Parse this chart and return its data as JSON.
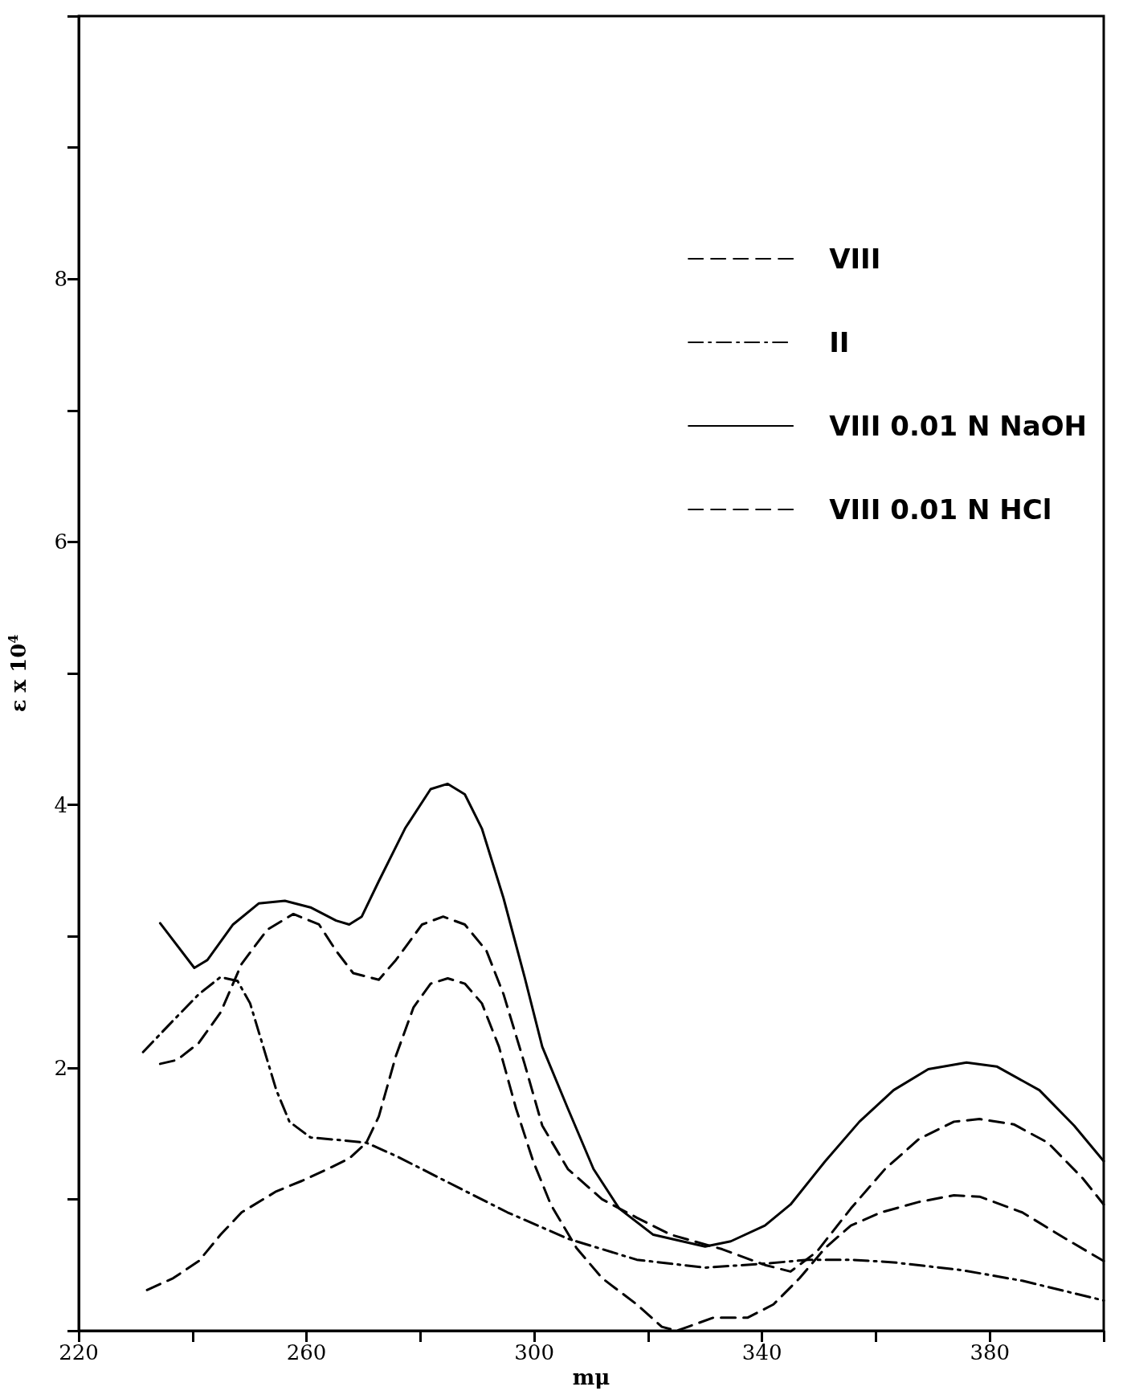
{
  "chart_data": {
    "type": "line",
    "xlabel": "mμ",
    "ylabel": "ε x 10$^{4}$",
    "xlim": [
      220,
      400
    ],
    "ylim": [
      0,
      10
    ],
    "xticks": [
      220,
      {
        "value": 240,
        "label": null
      },
      260,
      {
        "value": 280,
        "label": null
      },
      300,
      {
        "value": 320,
        "label": null
      },
      340,
      {
        "value": 360,
        "label": null
      },
      380,
      {
        "value": 400,
        "label": null
      }
    ],
    "yticks": [
      {
        "value": 0,
        "label": null
      },
      {
        "value": 1,
        "label": null
      },
      2,
      {
        "value": 3,
        "label": null
      },
      4,
      {
        "value": 5,
        "label": null
      },
      6,
      {
        "value": 7,
        "label": null
      },
      8,
      {
        "value": 9,
        "label": null
      },
      {
        "value": 10,
        "label": null
      }
    ],
    "grid": false,
    "legend": "top right",
    "marker": "none",
    "series": [
      {
        "name": "VIII",
        "color": "#000000",
        "line_style": "dashed",
        "x": [
          234.3,
          237.3,
          241.1,
          244.9,
          248.6,
          253.1,
          257.7,
          262.2,
          265.2,
          268.2,
          272.7,
          275.7,
          280.3,
          284,
          287.8,
          291.6,
          294.6,
          298.3,
          301.4,
          305.9,
          311.9,
          318,
          324,
          333,
          340.5,
          345,
          349.6,
          355.6,
          361.6,
          367.6,
          373.7,
          378.2,
          384.2,
          390.2,
          396.3,
          400
        ],
        "values": [
          2.03,
          2.06,
          2.19,
          2.42,
          2.79,
          3.05,
          3.17,
          3.09,
          2.89,
          2.72,
          2.67,
          2.82,
          3.09,
          3.15,
          3.09,
          2.89,
          2.56,
          2.03,
          1.56,
          1.23,
          1.0,
          0.86,
          0.73,
          0.62,
          0.5,
          0.45,
          0.6,
          0.93,
          1.23,
          1.46,
          1.59,
          1.61,
          1.57,
          1.43,
          1.16,
          0.96
        ]
      },
      {
        "name": "II",
        "color": "#000000",
        "line_style": "dashdot",
        "x": [
          231.3,
          236.6,
          241.1,
          244.9,
          247.9,
          250.1,
          252.4,
          254.7,
          257,
          260.7,
          265.9,
          270.5,
          275.7,
          284.8,
          295.3,
          305.9,
          318,
          330,
          340.5,
          348.1,
          355.6,
          363.1,
          375.2,
          385.7,
          400
        ],
        "values": [
          2.12,
          2.36,
          2.56,
          2.69,
          2.66,
          2.49,
          2.16,
          1.83,
          1.59,
          1.47,
          1.45,
          1.43,
          1.33,
          1.13,
          0.9,
          0.7,
          0.54,
          0.48,
          0.51,
          0.54,
          0.54,
          0.52,
          0.46,
          0.38,
          0.23
        ]
      },
      {
        "name": "VIII 0.01 N NaOH",
        "color": "#000000",
        "line_style": "solid",
        "x": [
          234.3,
          240.3,
          242.6,
          247.1,
          251.6,
          256.2,
          260.7,
          265.2,
          267.5,
          269.7,
          272.7,
          277.3,
          281.8,
          284.8,
          287.8,
          290.8,
          294.6,
          298.3,
          301.4,
          305.9,
          310.4,
          314.9,
          320.9,
          330,
          334.5,
          340.5,
          345,
          351.1,
          357.1,
          363.1,
          369.2,
          375.9,
          381.2,
          388.7,
          394.8,
          400
        ],
        "values": [
          3.1,
          2.76,
          2.82,
          3.09,
          3.25,
          3.27,
          3.22,
          3.12,
          3.09,
          3.15,
          3.42,
          3.82,
          4.12,
          4.16,
          4.08,
          3.82,
          3.29,
          2.69,
          2.16,
          1.69,
          1.23,
          0.93,
          0.73,
          0.64,
          0.68,
          0.8,
          0.96,
          1.29,
          1.59,
          1.83,
          1.99,
          2.04,
          2.01,
          1.83,
          1.56,
          1.29
        ]
      },
      {
        "name": "VIII 0.01 N HCl",
        "color": "#000000",
        "line_style": "dashed",
        "x": [
          232,
          236.6,
          241.1,
          244.9,
          248.6,
          254.7,
          259.2,
          263.7,
          267.5,
          270.5,
          272.7,
          275.7,
          278.8,
          281.8,
          284.8,
          287.8,
          290.8,
          293.8,
          296.8,
          299.8,
          302.9,
          307.4,
          311.9,
          318,
          322.4,
          325,
          327,
          331.5,
          337.5,
          342,
          346.6,
          351.1,
          355.6,
          360.9,
          367.6,
          373.7,
          378.2,
          385.7,
          393.3,
          400
        ],
        "values": [
          0.31,
          0.4,
          0.53,
          0.73,
          0.9,
          1.06,
          1.14,
          1.23,
          1.31,
          1.43,
          1.63,
          2.09,
          2.46,
          2.64,
          2.68,
          2.64,
          2.49,
          2.16,
          1.69,
          1.29,
          0.96,
          0.63,
          0.4,
          0.2,
          0.03,
          0,
          0.03,
          0.1,
          0.1,
          0.2,
          0.4,
          0.63,
          0.8,
          0.9,
          0.98,
          1.03,
          1.02,
          0.9,
          0.7,
          0.53
        ]
      }
    ]
  }
}
